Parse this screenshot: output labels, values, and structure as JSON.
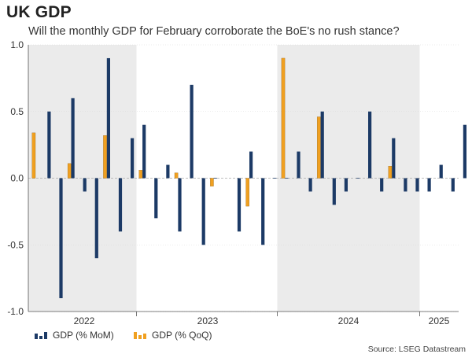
{
  "header": {
    "title": "UK GDP",
    "subtitle": "Will the monthly GDP for February corroborate the BoE's no rush stance?"
  },
  "footer": {
    "source": "Source: LSEG Datastream"
  },
  "chart_data": {
    "type": "bar",
    "ylim": [
      -1.0,
      1.0
    ],
    "yticks": [
      1.0,
      0.5,
      0.0,
      -0.5,
      -1.0
    ],
    "ytick_labels": [
      "1.0",
      "0.5",
      "0.0",
      "-0.5",
      "-1.0"
    ],
    "year_labels": [
      "2022",
      "2023",
      "2024",
      "2025"
    ],
    "shaded_years": [
      "2022",
      "2024"
    ],
    "x": [
      "Dec-21",
      "Jan-22",
      "Feb-22",
      "Mar-22",
      "Apr-22",
      "May-22",
      "Jun-22",
      "Jul-22",
      "Aug-22",
      "Sep-22",
      "Oct-22",
      "Nov-22",
      "Dec-22",
      "Jan-23",
      "Feb-23",
      "Mar-23",
      "Apr-23",
      "May-23",
      "Jun-23",
      "Jul-23",
      "Aug-23",
      "Sep-23",
      "Oct-23",
      "Nov-23",
      "Dec-23",
      "Jan-24",
      "Feb-24",
      "Mar-24",
      "Apr-24",
      "May-24",
      "Jun-24",
      "Jul-24",
      "Aug-24",
      "Sep-24",
      "Oct-24",
      "Nov-24",
      "Dec-24",
      "Jan-25"
    ],
    "series": [
      {
        "name": "GDP (% MoM)",
        "color": "#1c3a66",
        "values": [
          null,
          0.5,
          -0.9,
          0.6,
          -0.1,
          -0.6,
          0.9,
          -0.4,
          0.3,
          0.4,
          -0.3,
          0.1,
          -0.4,
          0.7,
          -0.5,
          0.0,
          null,
          -0.4,
          0.2,
          -0.5,
          0.0,
          0.0,
          0.2,
          -0.1,
          0.5,
          -0.2,
          -0.1,
          0.0,
          0.5,
          -0.1,
          0.3,
          -0.1,
          -0.1,
          -0.1,
          0.1,
          -0.1,
          0.4,
          -0.1
        ]
      },
      {
        "name": "GDP (% QoQ)",
        "color": "#f0a020",
        "values": [
          0.34,
          null,
          null,
          0.11,
          null,
          null,
          0.32,
          null,
          null,
          0.06,
          null,
          null,
          0.04,
          null,
          null,
          -0.06,
          null,
          null,
          -0.21,
          null,
          null,
          0.9,
          null,
          null,
          0.46,
          null,
          null,
          null,
          null,
          null,
          0.09,
          null,
          null,
          null,
          null,
          null,
          null,
          null
        ]
      }
    ]
  },
  "legend": {
    "mom_label": "GDP (% MoM)",
    "qoq_label": "GDP (% QoQ)"
  }
}
